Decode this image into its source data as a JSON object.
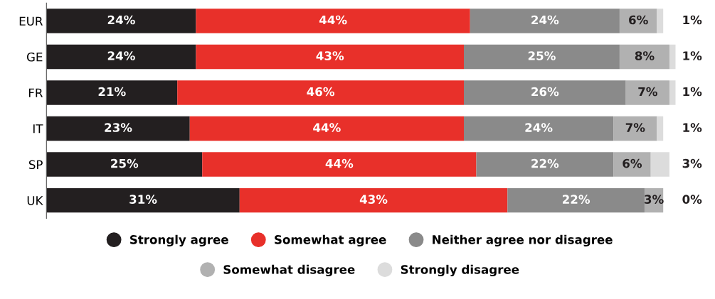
{
  "chart_data": {
    "type": "bar",
    "orientation": "horizontal",
    "stacked": true,
    "tick_labels": "y",
    "grid": false,
    "legend": "bottom",
    "categories": [
      "EUR",
      "GE",
      "FR",
      "IT",
      "SP",
      "UK"
    ],
    "series": [
      {
        "name": "Strongly agree",
        "color": "#231f20",
        "values": [
          24,
          24,
          21,
          23,
          25,
          31
        ],
        "value_labels": [
          "24%",
          "24%",
          "21%",
          "23%",
          "25%",
          "31%"
        ]
      },
      {
        "name": "Somewhat agree",
        "color": "#e8302a",
        "values": [
          44,
          43,
          46,
          44,
          44,
          43
        ],
        "value_labels": [
          "44%",
          "43%",
          "46%",
          "44%",
          "44%",
          "43%"
        ]
      },
      {
        "name": "Neither agree nor disagree",
        "color": "#8a8a8a",
        "values": [
          24,
          25,
          26,
          24,
          22,
          22
        ],
        "value_labels": [
          "24%",
          "25%",
          "26%",
          "24%",
          "22%",
          "22%"
        ]
      },
      {
        "name": "Somewhat disagree",
        "color": "#b1b1b1",
        "values": [
          6,
          8,
          7,
          7,
          6,
          3
        ],
        "value_labels": [
          "6%",
          "8%",
          "7%",
          "7%",
          "6%",
          "3%"
        ]
      },
      {
        "name": "Strongly disagree",
        "color": "#dcdcdc",
        "values": [
          1,
          1,
          1,
          1,
          3,
          0
        ],
        "value_labels": [
          "1%",
          "1%",
          "1%",
          "1%",
          "3%",
          "0%"
        ]
      }
    ]
  }
}
